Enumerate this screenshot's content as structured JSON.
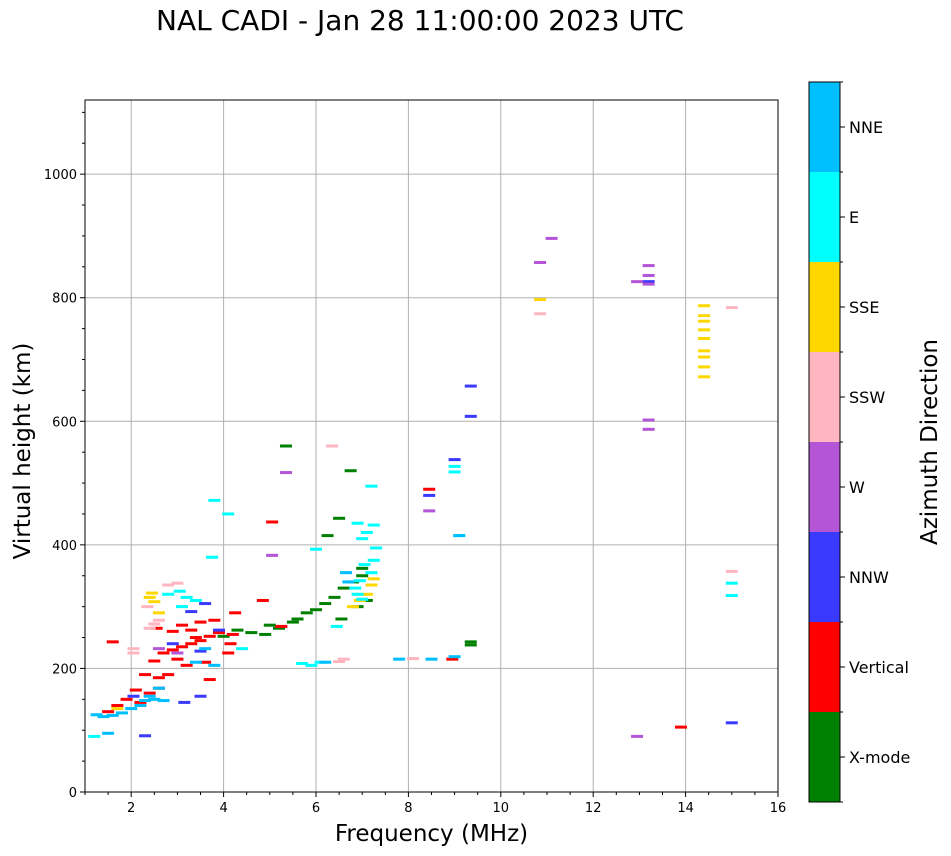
{
  "title": "NAL CADI - Jan 28 11:00:00 2023 UTC",
  "chart_data": {
    "type": "scatter",
    "title": "NAL CADI - Jan 28 11:00:00 2023 UTC",
    "xlabel": "Frequency (MHz)",
    "ylabel": "Virtual height (km)",
    "xlim": [
      1,
      16
    ],
    "ylim": [
      0,
      1120
    ],
    "xticks": [
      2,
      4,
      6,
      8,
      10,
      12,
      14,
      16
    ],
    "yticks": [
      0,
      200,
      400,
      600,
      800,
      1000
    ],
    "grid": true,
    "colorbar": {
      "label": "Azimuth Direction",
      "categories": [
        {
          "name": "X-mode",
          "color": "#008000"
        },
        {
          "name": "Vertical",
          "color": "#ff0000"
        },
        {
          "name": "NNW",
          "color": "#3a3aff"
        },
        {
          "name": "W",
          "color": "#b454d6"
        },
        {
          "name": "SSW",
          "color": "#ffb6c1"
        },
        {
          "name": "SSE",
          "color": "#ffd700"
        },
        {
          "name": "E",
          "color": "#00ffff"
        },
        {
          "name": "NNE",
          "color": "#00bfff"
        }
      ]
    },
    "series": [
      {
        "name": "X-mode",
        "points": [
          [
            5.35,
            560
          ],
          [
            6.75,
            520
          ],
          [
            6.5,
            443
          ],
          [
            6.25,
            415
          ],
          [
            5.8,
            290
          ],
          [
            6.0,
            295
          ],
          [
            6.2,
            305
          ],
          [
            6.4,
            315
          ],
          [
            6.55,
            280
          ],
          [
            6.6,
            330
          ],
          [
            6.8,
            340
          ],
          [
            7.0,
            350
          ],
          [
            5.5,
            275
          ],
          [
            5.2,
            265
          ],
          [
            4.9,
            255
          ],
          [
            4.6,
            258
          ],
          [
            4.3,
            262
          ],
          [
            4.0,
            252
          ],
          [
            6.9,
            300
          ],
          [
            7.0,
            362
          ],
          [
            7.1,
            310
          ],
          [
            9.35,
            238
          ],
          [
            9.35,
            243
          ],
          [
            5.6,
            280
          ],
          [
            5.0,
            270
          ]
        ]
      },
      {
        "name": "Vertical",
        "points": [
          [
            5.05,
            437
          ],
          [
            4.25,
            290
          ],
          [
            4.85,
            310
          ],
          [
            4.2,
            255
          ],
          [
            4.15,
            240
          ],
          [
            3.9,
            258
          ],
          [
            3.7,
            252
          ],
          [
            3.5,
            245
          ],
          [
            3.3,
            240
          ],
          [
            3.1,
            235
          ],
          [
            2.9,
            230
          ],
          [
            2.7,
            225
          ],
          [
            2.5,
            212
          ],
          [
            2.3,
            190
          ],
          [
            2.1,
            165
          ],
          [
            1.9,
            150
          ],
          [
            1.7,
            140
          ],
          [
            1.5,
            130
          ],
          [
            3.1,
            270
          ],
          [
            3.5,
            275
          ],
          [
            3.8,
            278
          ],
          [
            2.6,
            185
          ],
          [
            2.8,
            190
          ],
          [
            3.2,
            205
          ],
          [
            3.6,
            210
          ],
          [
            3.4,
            250
          ],
          [
            2.2,
            145
          ],
          [
            2.4,
            160
          ],
          [
            2.6,
            168
          ],
          [
            3.0,
            215
          ],
          [
            4.1,
            225
          ],
          [
            1.6,
            243
          ],
          [
            2.55,
            265
          ],
          [
            2.9,
            260
          ],
          [
            3.3,
            262
          ],
          [
            3.7,
            182
          ],
          [
            8.45,
            490
          ],
          [
            8.95,
            215
          ],
          [
            13.9,
            105
          ],
          [
            5.25,
            268
          ]
        ]
      },
      {
        "name": "NNW",
        "points": [
          [
            9.35,
            657
          ],
          [
            9.35,
            608
          ],
          [
            9.0,
            538
          ],
          [
            8.45,
            480
          ],
          [
            13.2,
            826
          ],
          [
            15.0,
            112
          ],
          [
            3.5,
            155
          ],
          [
            3.15,
            145
          ],
          [
            3.3,
            292
          ],
          [
            3.6,
            305
          ],
          [
            2.3,
            91
          ],
          [
            2.9,
            240
          ],
          [
            3.5,
            228
          ],
          [
            3.9,
            262
          ],
          [
            2.05,
            155
          ]
        ]
      },
      {
        "name": "W",
        "points": [
          [
            11.1,
            896
          ],
          [
            10.85,
            857
          ],
          [
            13.2,
            852
          ],
          [
            13.2,
            836
          ],
          [
            13.2,
            822
          ],
          [
            12.95,
            826
          ],
          [
            13.2,
            602
          ],
          [
            13.2,
            587
          ],
          [
            12.95,
            90
          ],
          [
            8.45,
            455
          ],
          [
            5.35,
            517
          ],
          [
            5.05,
            383
          ],
          [
            3.0,
            225
          ],
          [
            2.6,
            232
          ]
        ]
      },
      {
        "name": "SSW",
        "points": [
          [
            10.85,
            774
          ],
          [
            15.0,
            784
          ],
          [
            15.0,
            357
          ],
          [
            6.35,
            560
          ],
          [
            6.6,
            215
          ],
          [
            6.5,
            211
          ],
          [
            8.1,
            216
          ],
          [
            2.8,
            335
          ],
          [
            3.0,
            338
          ],
          [
            2.6,
            278
          ],
          [
            2.4,
            265
          ],
          [
            2.5,
            272
          ],
          [
            2.35,
            300
          ],
          [
            2.05,
            225
          ],
          [
            2.05,
            232
          ]
        ]
      },
      {
        "name": "SSE",
        "points": [
          [
            10.85,
            797
          ],
          [
            14.4,
            787
          ],
          [
            14.4,
            771
          ],
          [
            14.4,
            762
          ],
          [
            14.4,
            748
          ],
          [
            14.4,
            734
          ],
          [
            14.4,
            714
          ],
          [
            14.4,
            704
          ],
          [
            14.4,
            688
          ],
          [
            14.4,
            672
          ],
          [
            7.25,
            345
          ],
          [
            7.2,
            335
          ],
          [
            7.1,
            320
          ],
          [
            6.95,
            310
          ],
          [
            6.8,
            300
          ],
          [
            2.4,
            315
          ],
          [
            2.5,
            308
          ],
          [
            2.45,
            322
          ],
          [
            2.6,
            290
          ],
          [
            1.7,
            135
          ]
        ]
      },
      {
        "name": "E",
        "points": [
          [
            9.0,
            527
          ],
          [
            9.0,
            518
          ],
          [
            9.1,
            415
          ],
          [
            15.0,
            338
          ],
          [
            15.0,
            318
          ],
          [
            7.2,
            495
          ],
          [
            7.25,
            432
          ],
          [
            7.1,
            420
          ],
          [
            7.0,
            410
          ],
          [
            6.9,
            435
          ],
          [
            7.3,
            395
          ],
          [
            7.25,
            375
          ],
          [
            7.05,
            368
          ],
          [
            7.2,
            355
          ],
          [
            6.95,
            342
          ],
          [
            6.85,
            330
          ],
          [
            6.9,
            320
          ],
          [
            7.0,
            312
          ],
          [
            5.7,
            208
          ],
          [
            5.9,
            205
          ],
          [
            6.1,
            210
          ],
          [
            3.05,
            325
          ],
          [
            3.2,
            315
          ],
          [
            3.4,
            310
          ],
          [
            3.1,
            300
          ],
          [
            2.8,
            320
          ],
          [
            3.75,
            380
          ],
          [
            4.1,
            450
          ],
          [
            3.8,
            472
          ],
          [
            4.4,
            232
          ],
          [
            1.2,
            90
          ],
          [
            6.45,
            268
          ],
          [
            6.0,
            393
          ]
        ]
      },
      {
        "name": "NNE",
        "points": [
          [
            9.1,
            415
          ],
          [
            7.8,
            215
          ],
          [
            8.5,
            215
          ],
          [
            9.0,
            219
          ],
          [
            2.6,
            168
          ],
          [
            2.4,
            155
          ],
          [
            2.2,
            140
          ],
          [
            2.0,
            135
          ],
          [
            1.8,
            128
          ],
          [
            1.6,
            124
          ],
          [
            1.4,
            122
          ],
          [
            1.25,
            125
          ],
          [
            2.5,
            150
          ],
          [
            2.3,
            148
          ],
          [
            3.4,
            210
          ],
          [
            3.8,
            205
          ],
          [
            3.6,
            232
          ],
          [
            6.7,
            340
          ],
          [
            6.65,
            355
          ],
          [
            1.5,
            95
          ],
          [
            2.7,
            148
          ],
          [
            6.2,
            210
          ]
        ]
      }
    ]
  }
}
